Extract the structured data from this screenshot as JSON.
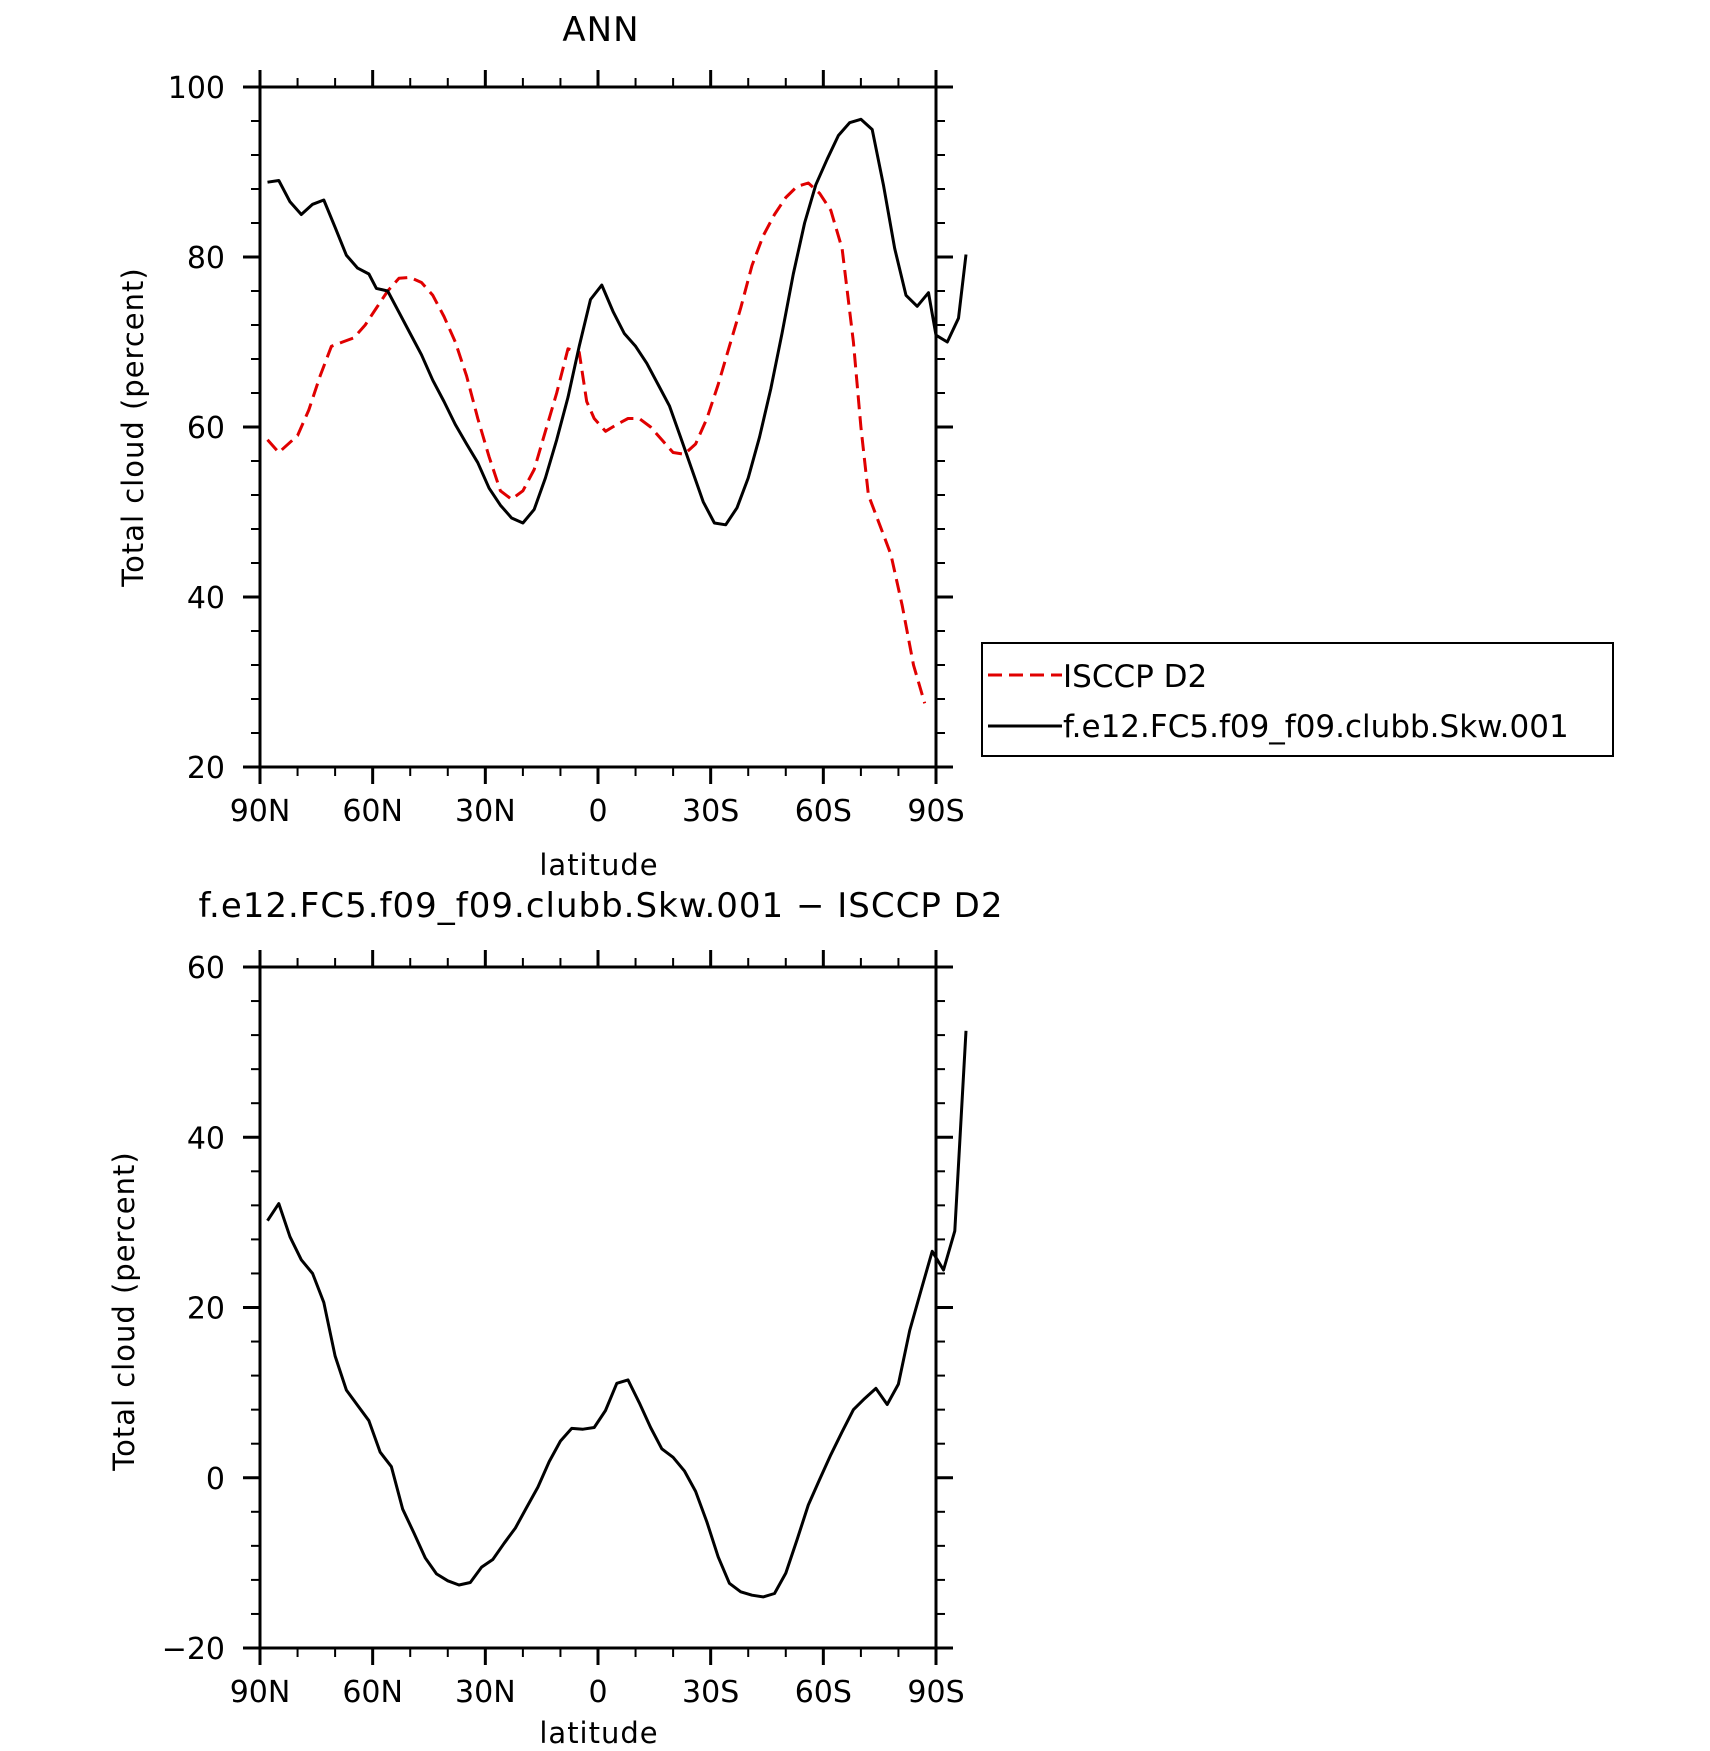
{
  "chart_data": [
    {
      "type": "line",
      "title": "ANN",
      "xlabel": "latitude",
      "ylabel": "Total cloud (percent)",
      "xlim": [
        90,
        -90
      ],
      "ylim": [
        20,
        100
      ],
      "x_ticks": [
        {
          "value": 90,
          "label": "90N"
        },
        {
          "value": 60,
          "label": "60N"
        },
        {
          "value": 30,
          "label": "30N"
        },
        {
          "value": 0,
          "label": "0"
        },
        {
          "value": -30,
          "label": "30S"
        },
        {
          "value": -60,
          "label": "60S"
        },
        {
          "value": -90,
          "label": "90S"
        }
      ],
      "y_ticks": [
        {
          "value": 20,
          "label": "20"
        },
        {
          "value": 40,
          "label": "40"
        },
        {
          "value": 60,
          "label": "60"
        },
        {
          "value": 80,
          "label": "80"
        },
        {
          "value": 100,
          "label": "100"
        }
      ],
      "legend": "outside-right",
      "series": [
        {
          "name": "ISCCP D2",
          "color": "#e00000",
          "dash": true,
          "points": [
            [
              88,
              58.5
            ],
            [
              85,
              57
            ],
            [
              80,
              59
            ],
            [
              77,
              62
            ],
            [
              74,
              66
            ],
            [
              71,
              69.5
            ],
            [
              68,
              70
            ],
            [
              65,
              70.5
            ],
            [
              62,
              72
            ],
            [
              59,
              74
            ],
            [
              56,
              76
            ],
            [
              53,
              77.5
            ],
            [
              50,
              77.6
            ],
            [
              47,
              77
            ],
            [
              44,
              75.5
            ],
            [
              41,
              73
            ],
            [
              38,
              70
            ],
            [
              35,
              66
            ],
            [
              32,
              61
            ],
            [
              29,
              56.5
            ],
            [
              26,
              52.5
            ],
            [
              23,
              51.5
            ],
            [
              20,
              52.5
            ],
            [
              17,
              55
            ],
            [
              14,
              59.5
            ],
            [
              11,
              64
            ],
            [
              8,
              69.2
            ],
            [
              5,
              68.8
            ],
            [
              3,
              63
            ],
            [
              1,
              61
            ],
            [
              -2,
              59.5
            ],
            [
              -5,
              60.3
            ],
            [
              -8,
              61
            ],
            [
              -11,
              61
            ],
            [
              -14,
              60
            ],
            [
              -17,
              58.5
            ],
            [
              -20,
              57
            ],
            [
              -23,
              56.8
            ],
            [
              -26,
              58
            ],
            [
              -29,
              61
            ],
            [
              -32,
              65
            ],
            [
              -35,
              69.5
            ],
            [
              -38,
              74
            ],
            [
              -41,
              79
            ],
            [
              -44,
              82.5
            ],
            [
              -47,
              85
            ],
            [
              -50,
              87
            ],
            [
              -53,
              88.3
            ],
            [
              -56,
              88.7
            ],
            [
              -59,
              87.5
            ],
            [
              -62,
              85.5
            ],
            [
              -65,
              81
            ],
            [
              -68,
              70
            ],
            [
              -70,
              60
            ],
            [
              -72,
              52
            ],
            [
              -75,
              48.5
            ],
            [
              -78,
              45
            ],
            [
              -81,
              39
            ],
            [
              -84,
              32
            ],
            [
              -87,
              27.5
            ]
          ]
        },
        {
          "name": "f.e12.FC5.f09_f09.clubb.Skw.001",
          "color": "#000000",
          "dash": false,
          "points": [
            [
              88,
              88.8
            ],
            [
              85,
              89
            ],
            [
              82,
              86.5
            ],
            [
              79,
              85
            ],
            [
              76,
              86.2
            ],
            [
              73,
              86.7
            ],
            [
              70,
              83.5
            ],
            [
              67,
              80.2
            ],
            [
              64,
              78.7
            ],
            [
              61,
              78
            ],
            [
              59,
              76.3
            ],
            [
              56,
              76
            ],
            [
              53,
              73.5
            ],
            [
              50,
              71
            ],
            [
              47,
              68.5
            ],
            [
              44,
              65.5
            ],
            [
              41,
              63
            ],
            [
              38,
              60.3
            ],
            [
              35,
              58
            ],
            [
              32,
              55.8
            ],
            [
              29,
              52.8
            ],
            [
              26,
              50.8
            ],
            [
              23,
              49.3
            ],
            [
              20,
              48.7
            ],
            [
              17,
              50.3
            ],
            [
              14,
              54
            ],
            [
              11,
              58.5
            ],
            [
              8,
              63.5
            ],
            [
              5,
              69.5
            ],
            [
              2,
              75
            ],
            [
              -1,
              76.7
            ],
            [
              -4,
              73.6
            ],
            [
              -7,
              71
            ],
            [
              -10,
              69.5
            ],
            [
              -13,
              67.5
            ],
            [
              -16,
              65
            ],
            [
              -19,
              62.5
            ],
            [
              -22,
              58.8
            ],
            [
              -25,
              55
            ],
            [
              -28,
              51.2
            ],
            [
              -31,
              48.7
            ],
            [
              -34,
              48.5
            ],
            [
              -37,
              50.5
            ],
            [
              -40,
              54
            ],
            [
              -43,
              58.8
            ],
            [
              -46,
              64.5
            ],
            [
              -49,
              71
            ],
            [
              -52,
              78
            ],
            [
              -55,
              84
            ],
            [
              -58,
              88.5
            ],
            [
              -61,
              91.5
            ],
            [
              -64,
              94.3
            ],
            [
              -67,
              95.8
            ],
            [
              -70,
              96.2
            ],
            [
              -73,
              95
            ],
            [
              -76,
              88.5
            ],
            [
              -79,
              81
            ],
            [
              -82,
              75.5
            ],
            [
              -85,
              74.2
            ],
            [
              -88,
              75.8
            ],
            [
              -90,
              70.8
            ],
            [
              -93,
              70
            ],
            [
              -96,
              72.8
            ],
            [
              -98,
              80.3
            ]
          ]
        }
      ]
    },
    {
      "type": "line",
      "title": "f.e12.FC5.f09_f09.clubb.Skw.001 − ISCCP D2",
      "xlabel": "latitude",
      "ylabel": "Total cloud (percent)",
      "xlim": [
        90,
        -90
      ],
      "ylim": [
        -20,
        60
      ],
      "x_ticks": [
        {
          "value": 90,
          "label": "90N"
        },
        {
          "value": 60,
          "label": "60N"
        },
        {
          "value": 30,
          "label": "30N"
        },
        {
          "value": 0,
          "label": "0"
        },
        {
          "value": -30,
          "label": "30S"
        },
        {
          "value": -60,
          "label": "60S"
        },
        {
          "value": -90,
          "label": "90S"
        }
      ],
      "y_ticks": [
        {
          "value": -20,
          "label": "−20"
        },
        {
          "value": 0,
          "label": "0"
        },
        {
          "value": 20,
          "label": "20"
        },
        {
          "value": 40,
          "label": "40"
        },
        {
          "value": 60,
          "label": "60"
        }
      ],
      "series": [
        {
          "color": "#000000",
          "dash": false,
          "points": [
            [
              88,
              30.2
            ],
            [
              85,
              32.2
            ],
            [
              82,
              28.3
            ],
            [
              79,
              25.6
            ],
            [
              76,
              24
            ],
            [
              73,
              20.6
            ],
            [
              70,
              14.3
            ],
            [
              67,
              10.3
            ],
            [
              64,
              8.5
            ],
            [
              61,
              6.7
            ],
            [
              58,
              3
            ],
            [
              55,
              1.3
            ],
            [
              52,
              -3.7
            ],
            [
              49,
              -6.5
            ],
            [
              46,
              -9.4
            ],
            [
              43,
              -11.3
            ],
            [
              40,
              -12.1
            ],
            [
              37,
              -12.6
            ],
            [
              34,
              -12.3
            ],
            [
              31,
              -10.5
            ],
            [
              28,
              -9.6
            ],
            [
              25,
              -7.7
            ],
            [
              22,
              -5.9
            ],
            [
              19,
              -3.5
            ],
            [
              16,
              -1.1
            ],
            [
              13,
              1.9
            ],
            [
              10,
              4.3
            ],
            [
              7,
              5.8
            ],
            [
              4,
              5.7
            ],
            [
              1,
              5.9
            ],
            [
              -2,
              7.9
            ],
            [
              -5,
              11.1
            ],
            [
              -8,
              11.5
            ],
            [
              -11,
              8.8
            ],
            [
              -14,
              5.9
            ],
            [
              -17,
              3.4
            ],
            [
              -20,
              2.4
            ],
            [
              -23,
              0.8
            ],
            [
              -26,
              -1.6
            ],
            [
              -29,
              -5.2
            ],
            [
              -32,
              -9.3
            ],
            [
              -35,
              -12.4
            ],
            [
              -38,
              -13.4
            ],
            [
              -41,
              -13.8
            ],
            [
              -44,
              -14
            ],
            [
              -47,
              -13.6
            ],
            [
              -50,
              -11.2
            ],
            [
              -53,
              -7.3
            ],
            [
              -56,
              -3.2
            ],
            [
              -59,
              -0.2
            ],
            [
              -62,
              2.7
            ],
            [
              -65,
              5.4
            ],
            [
              -68,
              8
            ],
            [
              -71,
              9.3
            ],
            [
              -74,
              10.5
            ],
            [
              -77,
              8.6
            ],
            [
              -80,
              11
            ],
            [
              -83,
              17.3
            ],
            [
              -86,
              22
            ],
            [
              -89,
              26.6
            ],
            [
              -92,
              24.4
            ],
            [
              -95,
              29
            ],
            [
              -98,
              52.5
            ]
          ]
        }
      ]
    }
  ]
}
